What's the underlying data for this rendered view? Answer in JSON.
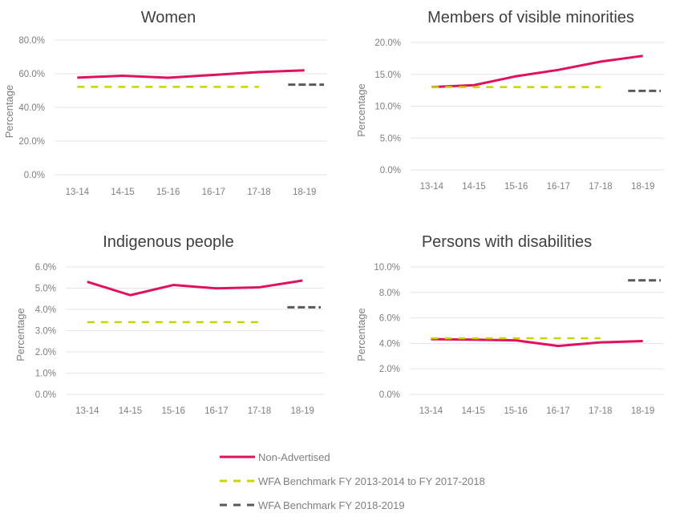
{
  "chart_data": [
    {
      "type": "line",
      "title": "Women",
      "xlabel": "",
      "ylabel": "Percentage",
      "categories": [
        "13-14",
        "14-15",
        "15-16",
        "16-17",
        "17-18",
        "18-19"
      ],
      "yticks": [
        "0.0%",
        "20.0%",
        "40.0%",
        "60.0%",
        "80.0%"
      ],
      "ylim": [
        0,
        80
      ],
      "grid": true,
      "series": [
        {
          "name": "Non-Advertised",
          "values": [
            57.7,
            58.8,
            57.6,
            59.3,
            61.0,
            62.0
          ]
        },
        {
          "name": "WFA Benchmark FY 2013-2014 to FY 2017-2018",
          "values": [
            52.2,
            52.2,
            52.2,
            52.2,
            52.2,
            null
          ]
        },
        {
          "name": "WFA Benchmark FY 2018-2019",
          "values": [
            null,
            null,
            null,
            null,
            null,
            53.5
          ]
        }
      ]
    },
    {
      "type": "line",
      "title": "Members of visible minorities",
      "xlabel": "",
      "ylabel": "Percentage",
      "categories": [
        "13-14",
        "14-15",
        "15-16",
        "16-17",
        "17-18",
        "18-19"
      ],
      "yticks": [
        "0.0%",
        "5.0%",
        "10.0%",
        "15.0%",
        "20.0%"
      ],
      "ylim": [
        0,
        20
      ],
      "grid": true,
      "series": [
        {
          "name": "Non-Advertised",
          "values": [
            13.0,
            13.3,
            14.7,
            15.7,
            17.0,
            17.9
          ]
        },
        {
          "name": "WFA Benchmark FY 2013-2014 to FY 2017-2018",
          "values": [
            13.0,
            13.0,
            13.0,
            13.0,
            13.0,
            null
          ]
        },
        {
          "name": "WFA Benchmark FY 2018-2019",
          "values": [
            null,
            null,
            null,
            null,
            null,
            12.4
          ]
        }
      ]
    },
    {
      "type": "line",
      "title": "Indigenous people",
      "xlabel": "",
      "ylabel": "Percentage",
      "categories": [
        "13-14",
        "14-15",
        "15-16",
        "16-17",
        "17-18",
        "18-19"
      ],
      "yticks": [
        "0.0%",
        "1.0%",
        "2.0%",
        "3.0%",
        "4.0%",
        "5.0%",
        "6.0%"
      ],
      "ylim": [
        0,
        6
      ],
      "grid": true,
      "series": [
        {
          "name": "Non-Advertised",
          "values": [
            5.3,
            4.67,
            5.15,
            4.99,
            5.04,
            5.36
          ]
        },
        {
          "name": "WFA Benchmark FY 2013-2014 to FY 2017-2018",
          "values": [
            3.4,
            3.4,
            3.4,
            3.4,
            3.4,
            null
          ]
        },
        {
          "name": "WFA Benchmark FY 2018-2019",
          "values": [
            null,
            null,
            null,
            null,
            null,
            4.1
          ]
        }
      ]
    },
    {
      "type": "line",
      "title": "Persons with disabilities",
      "xlabel": "",
      "ylabel": "Percentage",
      "categories": [
        "13-14",
        "14-15",
        "15-16",
        "16-17",
        "17-18",
        "18-19"
      ],
      "yticks": [
        "0.0%",
        "2.0%",
        "4.0%",
        "6.0%",
        "8.0%",
        "10.0%"
      ],
      "ylim": [
        0,
        10
      ],
      "grid": true,
      "series": [
        {
          "name": "Non-Advertised",
          "values": [
            4.33,
            4.29,
            4.24,
            3.8,
            4.08,
            4.18
          ]
        },
        {
          "name": "WFA Benchmark FY 2013-2014 to FY 2017-2018",
          "values": [
            4.4,
            4.4,
            4.4,
            4.4,
            4.4,
            null
          ]
        },
        {
          "name": "WFA Benchmark FY 2018-2019",
          "values": [
            null,
            null,
            null,
            null,
            null,
            8.95
          ]
        }
      ]
    }
  ],
  "legend": {
    "placement": "bottom",
    "items": [
      {
        "label": "Non-Advertised",
        "style": "solid",
        "color": "#e0115f"
      },
      {
        "label": "WFA Benchmark FY 2013-2014 to FY 2017-2018",
        "style": "dashed",
        "color": "#c8d400"
      },
      {
        "label": "WFA Benchmark FY 2018-2019",
        "style": "dashed",
        "color": "#595959"
      }
    ]
  },
  "colors": {
    "non_advertised": "#e0115f",
    "benchmark_old": "#c8d400",
    "benchmark_new": "#595959",
    "grid": "#e6e6e6"
  }
}
